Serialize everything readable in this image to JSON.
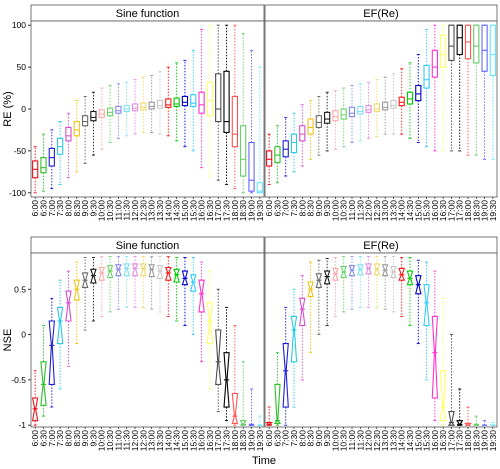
{
  "chart_data": [
    {
      "type": "boxplot",
      "ylabel": "RE (%)",
      "ylim": [
        -105,
        105
      ],
      "yticks": [
        -100,
        -50,
        0,
        50,
        100
      ],
      "categories": [
        "6:00",
        "6:30",
        "7:00",
        "7:30",
        "8:00",
        "8:30",
        "9:00",
        "9:30",
        "10:00",
        "10:30",
        "11:00",
        "11:30",
        "12:00",
        "12:30",
        "13:00",
        "13:30",
        "14:00",
        "14:30",
        "15:00",
        "15:30",
        "16:00",
        "16:30",
        "17:00",
        "17:30",
        "18:00",
        "18:30",
        "19:00",
        "19:30"
      ],
      "panels": [
        {
          "strip": "Sine function",
          "boxes": [
            [
              -100,
              -82,
              -72,
              -62,
              -45
            ],
            [
              -98,
              -76,
              -70,
              -58,
              -30
            ],
            [
              -95,
              -68,
              -58,
              -47,
              -25
            ],
            [
              -90,
              -54,
              -45,
              -35,
              -15
            ],
            [
              -82,
              -38,
              -32,
              -22,
              -5
            ],
            [
              -75,
              -32,
              -25,
              -15,
              10
            ],
            [
              -65,
              -20,
              -15,
              -8,
              15
            ],
            [
              -55,
              -14,
              -10,
              -3,
              20
            ],
            [
              -48,
              -10,
              -6,
              -1,
              25
            ],
            [
              -40,
              -8,
              -4,
              1,
              28
            ],
            [
              -35,
              -5,
              -2,
              3,
              30
            ],
            [
              -32,
              -3,
              0,
              4,
              32
            ],
            [
              -30,
              -2,
              1,
              6,
              35
            ],
            [
              -28,
              -1,
              2,
              7,
              38
            ],
            [
              -28,
              0,
              3,
              8,
              40
            ],
            [
              -30,
              1,
              4,
              10,
              45
            ],
            [
              -32,
              2,
              5,
              12,
              50
            ],
            [
              -38,
              3,
              6,
              13,
              55
            ],
            [
              -45,
              4,
              8,
              15,
              58
            ],
            [
              -50,
              3,
              7,
              17,
              70
            ],
            [
              -70,
              -5,
              5,
              20,
              95
            ],
            [
              -80,
              -8,
              10,
              32,
              100
            ],
            [
              -85,
              -15,
              0,
              42,
              100
            ],
            [
              -90,
              -28,
              -15,
              45,
              100
            ],
            [
              -95,
              -45,
              -30,
              15,
              100
            ],
            [
              -100,
              -80,
              -60,
              -20,
              90
            ],
            [
              -100,
              -98,
              -85,
              -40,
              70
            ],
            [
              -100,
              -100,
              -98,
              -88,
              50
            ]
          ]
        },
        {
          "strip": "EF(Re)",
          "boxes": [
            [
              -90,
              -68,
              -60,
              -50,
              -30
            ],
            [
              -88,
              -64,
              -55,
              -45,
              -20
            ],
            [
              -80,
              -57,
              -48,
              -38,
              -10
            ],
            [
              -75,
              -52,
              -40,
              -30,
              -5
            ],
            [
              -68,
              -38,
              -30,
              -20,
              5
            ],
            [
              -60,
              -30,
              -22,
              -12,
              10
            ],
            [
              -55,
              -22,
              -16,
              -8,
              15
            ],
            [
              -50,
              -17,
              -12,
              -4,
              20
            ],
            [
              -48,
              -14,
              -9,
              -2,
              22
            ],
            [
              -45,
              -12,
              -7,
              0,
              25
            ],
            [
              -40,
              -9,
              -5,
              2,
              28
            ],
            [
              -38,
              -6,
              -3,
              3,
              30
            ],
            [
              -35,
              -4,
              -1,
              4,
              32
            ],
            [
              -33,
              -3,
              0,
              6,
              35
            ],
            [
              -30,
              -1,
              2,
              8,
              38
            ],
            [
              -30,
              1,
              4,
              10,
              42
            ],
            [
              -30,
              4,
              8,
              14,
              48
            ],
            [
              -35,
              6,
              12,
              20,
              55
            ],
            [
              -40,
              10,
              18,
              28,
              65
            ],
            [
              -45,
              25,
              35,
              52,
              95
            ],
            [
              -50,
              38,
              50,
              70,
              100
            ],
            [
              -50,
              50,
              65,
              88,
              100
            ],
            [
              -50,
              58,
              75,
              100,
              100
            ],
            [
              -50,
              65,
              85,
              100,
              100
            ],
            [
              -55,
              60,
              80,
              100,
              100
            ],
            [
              -55,
              55,
              75,
              100,
              100
            ],
            [
              -60,
              45,
              70,
              100,
              100
            ],
            [
              -60,
              40,
              65,
              100,
              100
            ]
          ]
        }
      ]
    },
    {
      "type": "boxplot",
      "ylabel": "NSE",
      "xlabel": "Time",
      "ylim": [
        -1.02,
        0.9
      ],
      "yticks": [
        -1.0,
        -0.5,
        0.0,
        0.5
      ],
      "categories": [
        "6:00",
        "6:30",
        "7:00",
        "7:30",
        "8:00",
        "8:30",
        "9:00",
        "9:30",
        "10:00",
        "10:30",
        "11:00",
        "11:30",
        "12:00",
        "12:30",
        "13:00",
        "13:30",
        "14:00",
        "14:30",
        "15:00",
        "15:30",
        "16:00",
        "16:30",
        "17:00",
        "17:30",
        "18:00",
        "18:30",
        "19:00",
        "19:30"
      ],
      "panels": [
        {
          "strip": "Sine function",
          "boxes": [
            [
              -1.0,
              -0.95,
              -0.82,
              -0.7,
              -0.4
            ],
            [
              -0.9,
              -0.78,
              -0.55,
              -0.3,
              0.1
            ],
            [
              -0.8,
              -0.55,
              -0.12,
              0.15,
              0.4
            ],
            [
              -0.6,
              -0.1,
              0.15,
              0.3,
              0.6
            ],
            [
              -0.35,
              0.15,
              0.35,
              0.48,
              0.7
            ],
            [
              -0.1,
              0.38,
              0.5,
              0.6,
              0.8
            ],
            [
              0.05,
              0.52,
              0.6,
              0.68,
              0.85
            ],
            [
              0.15,
              0.57,
              0.65,
              0.72,
              0.85
            ],
            [
              0.2,
              0.6,
              0.68,
              0.74,
              0.86
            ],
            [
              0.25,
              0.63,
              0.7,
              0.76,
              0.86
            ],
            [
              0.28,
              0.65,
              0.72,
              0.77,
              0.86
            ],
            [
              0.3,
              0.65,
              0.73,
              0.78,
              0.86
            ],
            [
              0.3,
              0.65,
              0.73,
              0.78,
              0.86
            ],
            [
              0.3,
              0.65,
              0.73,
              0.78,
              0.86
            ],
            [
              0.28,
              0.64,
              0.72,
              0.77,
              0.86
            ],
            [
              0.25,
              0.62,
              0.7,
              0.76,
              0.86
            ],
            [
              0.2,
              0.6,
              0.68,
              0.74,
              0.86
            ],
            [
              0.15,
              0.58,
              0.66,
              0.72,
              0.85
            ],
            [
              0.1,
              0.55,
              0.62,
              0.7,
              0.85
            ],
            [
              0.0,
              0.48,
              0.58,
              0.66,
              0.85
            ],
            [
              -0.3,
              0.25,
              0.45,
              0.6,
              0.8
            ],
            [
              -0.6,
              -0.1,
              0.15,
              0.35,
              0.7
            ],
            [
              -0.85,
              -0.55,
              -0.3,
              0.05,
              0.5
            ],
            [
              -0.95,
              -0.8,
              -0.5,
              -0.2,
              0.3
            ],
            [
              -1.0,
              -0.98,
              -0.9,
              -0.65,
              0.1
            ],
            [
              -1.0,
              -1.0,
              -0.99,
              -0.95,
              -0.3
            ],
            [
              -1.0,
              -1.0,
              -1.0,
              -0.99,
              -0.6
            ],
            [
              -1.0,
              -1.0,
              -1.0,
              -1.0,
              -0.9
            ]
          ]
        },
        {
          "strip": "EF(Re)",
          "boxes": [
            [
              -1.0,
              -1.0,
              -0.99,
              -0.97,
              -0.8
            ],
            [
              -1.0,
              -0.98,
              -0.95,
              -0.55,
              -0.2
            ],
            [
              -1.0,
              -0.8,
              -0.4,
              -0.1,
              0.3
            ],
            [
              -0.8,
              -0.3,
              0.05,
              0.2,
              0.5
            ],
            [
              -0.5,
              0.1,
              0.28,
              0.4,
              0.65
            ],
            [
              -0.2,
              0.42,
              0.5,
              0.58,
              0.8
            ],
            [
              0.0,
              0.52,
              0.6,
              0.67,
              0.82
            ],
            [
              0.1,
              0.56,
              0.64,
              0.7,
              0.84
            ],
            [
              0.2,
              0.6,
              0.67,
              0.73,
              0.85
            ],
            [
              0.25,
              0.63,
              0.69,
              0.75,
              0.86
            ],
            [
              0.28,
              0.65,
              0.71,
              0.76,
              0.86
            ],
            [
              0.3,
              0.66,
              0.72,
              0.77,
              0.86
            ],
            [
              0.3,
              0.67,
              0.73,
              0.78,
              0.86
            ],
            [
              0.3,
              0.66,
              0.72,
              0.78,
              0.86
            ],
            [
              0.28,
              0.65,
              0.71,
              0.77,
              0.86
            ],
            [
              0.25,
              0.63,
              0.69,
              0.75,
              0.86
            ],
            [
              0.2,
              0.6,
              0.66,
              0.73,
              0.85
            ],
            [
              0.1,
              0.55,
              0.62,
              0.7,
              0.85
            ],
            [
              -0.1,
              0.45,
              0.55,
              0.65,
              0.82
            ],
            [
              -0.5,
              0.1,
              0.35,
              0.55,
              0.8
            ],
            [
              -0.95,
              -0.7,
              -0.2,
              0.2,
              0.7
            ],
            [
              -1.0,
              -0.95,
              -0.8,
              -0.4,
              0.4
            ],
            [
              -1.0,
              -1.0,
              -0.97,
              -0.85,
              0.0
            ],
            [
              -1.0,
              -1.0,
              -0.99,
              -0.95,
              -0.6
            ],
            [
              -1.0,
              -1.0,
              -1.0,
              -0.98,
              -0.8
            ],
            [
              -1.0,
              -1.0,
              -1.0,
              -0.99,
              -0.9
            ],
            [
              -1.0,
              -1.0,
              -1.0,
              -1.0,
              -0.95
            ],
            [
              -1.0,
              -1.0,
              -1.0,
              -1.0,
              -0.97
            ]
          ]
        }
      ]
    }
  ],
  "palette": [
    "#e8121f",
    "#2cc12a",
    "#1f1fd6",
    "#27c9e6",
    "#d64fd1",
    "#f0c419",
    "#6b6b6b",
    "#1a1a1a",
    "#ffa8a8",
    "#6bd46b",
    "#8a8ae8",
    "#80e0f0",
    "#e38ee0",
    "#f2d96b",
    "#9a9a9a",
    "#c9c9c9",
    "#ff1a1a",
    "#00cc00",
    "#0000cc",
    "#33ccff",
    "#ff33cc",
    "#ffff66",
    "#4d4d4d",
    "#000000",
    "#ff5555",
    "#66cc66",
    "#6666ff",
    "#66e6ff"
  ]
}
